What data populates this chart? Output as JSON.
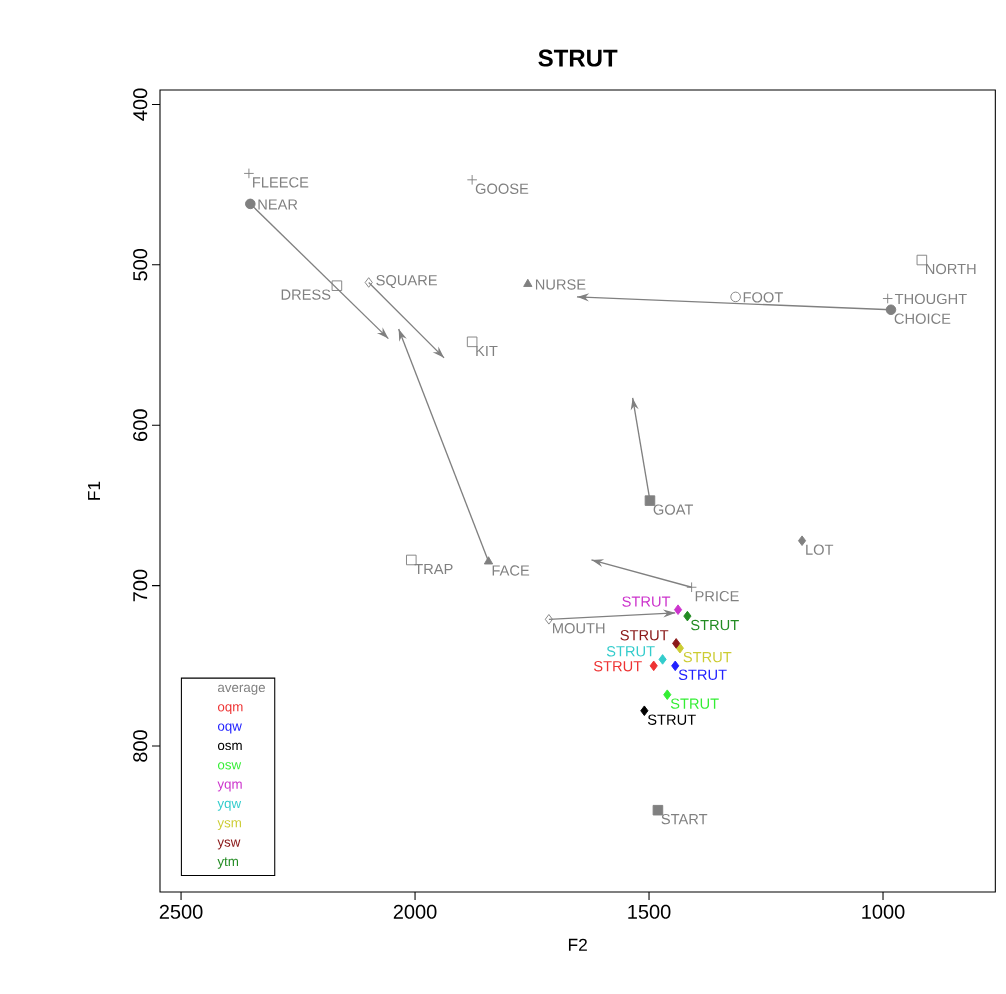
{
  "chart_data": {
    "type": "scatter",
    "title": "STRUT",
    "xlabel": "F2",
    "ylabel": "F1",
    "xlim": [
      2545,
      760
    ],
    "ylim": [
      891,
      391
    ],
    "xticks": [
      2500,
      2000,
      1500,
      1000
    ],
    "yticks": [
      400,
      500,
      600,
      700,
      800
    ],
    "legend": "bottom left",
    "series": [
      {
        "name": "average",
        "color": "#808080",
        "marker": "cross",
        "x": [
          2355,
          1409
        ],
        "values": [
          443,
          701
        ],
        "value_labels": [
          "FLEECE",
          "PRICE"
        ]
      },
      {
        "color": "#808080",
        "marker": "circle",
        "x": [
          2352,
          983
        ],
        "values": [
          462,
          528
        ],
        "value_labels": [
          "NEAR",
          "CHOICE"
        ]
      },
      {
        "color": "#808080",
        "marker": "cross",
        "x": [
          1878,
          990
        ],
        "values": [
          447,
          521
        ],
        "value_labels": [
          "GOOSE",
          "THOUGHT"
        ]
      },
      {
        "color": "#808080",
        "marker": "triangle",
        "x": [
          1759,
          1843
        ],
        "values": [
          512,
          685
        ],
        "value_labels": [
          "NURSE",
          "FACE"
        ]
      },
      {
        "color": "#808080",
        "marker": "square-open",
        "x": [
          2167,
          917
        ],
        "values": [
          513,
          497
        ],
        "value_labels": [
          "DRESS",
          "NORTH"
        ]
      },
      {
        "color": "#808080",
        "marker": "diamond-open",
        "x": [
          2099
        ],
        "values": [
          511
        ],
        "value_labels": [
          "SQUARE"
        ]
      },
      {
        "color": "#808080",
        "marker": "square-open",
        "x": [
          1878,
          2008
        ],
        "values": [
          548,
          684
        ],
        "value_labels": [
          "KIT",
          "TRAP"
        ]
      },
      {
        "color": "#808080",
        "marker": "circle-open",
        "x": [
          1315
        ],
        "values": [
          520
        ],
        "value_labels": [
          "FOOT"
        ]
      },
      {
        "color": "#808080",
        "marker": "square",
        "x": [
          1498,
          1481
        ],
        "values": [
          647,
          840
        ],
        "value_labels": [
          "GOAT",
          "START"
        ]
      },
      {
        "color": "#808080",
        "marker": "diamond",
        "x": [
          1173
        ],
        "values": [
          672
        ],
        "value_labels": [
          "LOT"
        ]
      },
      {
        "color": "#808080",
        "marker": "diamond-open",
        "x": [
          1714
        ],
        "values": [
          721
        ],
        "value_labels": [
          "MOUTH"
        ]
      },
      {
        "type": "line",
        "color": "#808080",
        "marker": "none",
        "x": [
          2352,
          2057
        ],
        "values": [
          462,
          546
        ]
      },
      {
        "type": "line",
        "color": "#808080",
        "marker": "none",
        "x": [
          2099,
          1938
        ],
        "values": [
          511,
          558
        ]
      },
      {
        "type": "line",
        "color": "#808080",
        "marker": "none",
        "x": [
          983,
          1654
        ],
        "values": [
          528,
          520
        ]
      },
      {
        "type": "line",
        "color": "#808080",
        "marker": "none",
        "x": [
          1498,
          1535
        ],
        "values": [
          647,
          583
        ]
      },
      {
        "type": "line",
        "color": "#808080",
        "marker": "none",
        "x": [
          1843,
          2035
        ],
        "values": [
          685,
          540
        ]
      },
      {
        "type": "line",
        "color": "#808080",
        "marker": "none",
        "x": [
          1409,
          1623
        ],
        "values": [
          701,
          684
        ]
      },
      {
        "type": "line",
        "color": "#808080",
        "marker": "none",
        "x": [
          1714,
          1444
        ],
        "values": [
          721,
          717
        ]
      },
      {
        "name": "oqm",
        "color": "#ee3333",
        "marker": "diamond",
        "x": [
          1490
        ],
        "values": [
          750
        ],
        "value_labels": [
          "STRUT"
        ]
      },
      {
        "name": "oqw",
        "color": "#2222ff",
        "marker": "diamond",
        "x": [
          1444
        ],
        "values": [
          750
        ],
        "value_labels": [
          "STRUT"
        ]
      },
      {
        "name": "osm",
        "color": "#000000",
        "marker": "diamond",
        "x": [
          1510
        ],
        "values": [
          778
        ],
        "value_labels": [
          "STRUT"
        ]
      },
      {
        "name": "osw",
        "color": "#33ee33",
        "marker": "diamond",
        "x": [
          1461
        ],
        "values": [
          768
        ],
        "value_labels": [
          "STRUT"
        ]
      },
      {
        "name": "yqm",
        "color": "#cc33cc",
        "marker": "diamond",
        "x": [
          1438
        ],
        "values": [
          715
        ],
        "value_labels": [
          "STRUT"
        ]
      },
      {
        "name": "yqw",
        "color": "#33cccc",
        "marker": "diamond",
        "x": [
          1471
        ],
        "values": [
          746
        ],
        "value_labels": [
          "STRUT"
        ]
      },
      {
        "name": "ysm",
        "color": "#cccc33",
        "marker": "diamond",
        "x": [
          1434
        ],
        "values": [
          739
        ],
        "value_labels": [
          "STRUT"
        ]
      },
      {
        "name": "ysw",
        "color": "#8b1a1a",
        "marker": "diamond",
        "x": [
          1442
        ],
        "values": [
          736
        ],
        "value_labels": [
          "STRUT"
        ]
      },
      {
        "name": "ytm",
        "color": "#228b22",
        "marker": "diamond",
        "x": [
          1418
        ],
        "values": [
          719
        ],
        "value_labels": [
          "STRUT"
        ]
      }
    ]
  }
}
